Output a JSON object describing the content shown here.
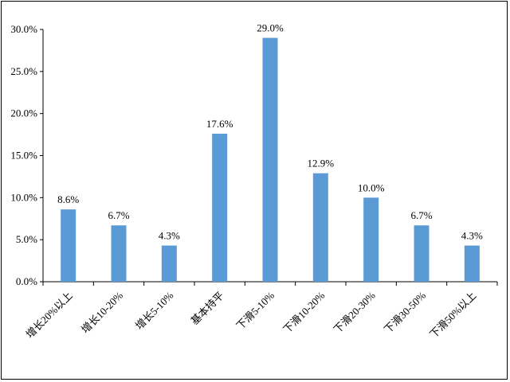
{
  "chart_data": {
    "type": "bar",
    "categories": [
      "增长20%以上",
      "增长10-20%",
      "增长5-10%",
      "基本持平",
      "下滑5-10%",
      "下滑10-20%",
      "下滑20-30%",
      "下滑30-50%",
      "下滑50%以上"
    ],
    "values": [
      8.6,
      6.7,
      4.3,
      17.6,
      29.0,
      12.9,
      10.0,
      6.7,
      4.3
    ],
    "data_labels": [
      "8.6%",
      "6.7%",
      "4.3%",
      "17.6%",
      "29.0%",
      "12.9%",
      "10.0%",
      "6.7%",
      "4.3%"
    ],
    "y_ticks": [
      "0.0%",
      "5.0%",
      "10.0%",
      "15.0%",
      "20.0%",
      "25.0%",
      "30.0%"
    ],
    "ylim": [
      0,
      30
    ],
    "title": "",
    "xlabel": "",
    "ylabel": "",
    "grid": false,
    "legend": "none",
    "bar_color": "#5b9bd5"
  }
}
